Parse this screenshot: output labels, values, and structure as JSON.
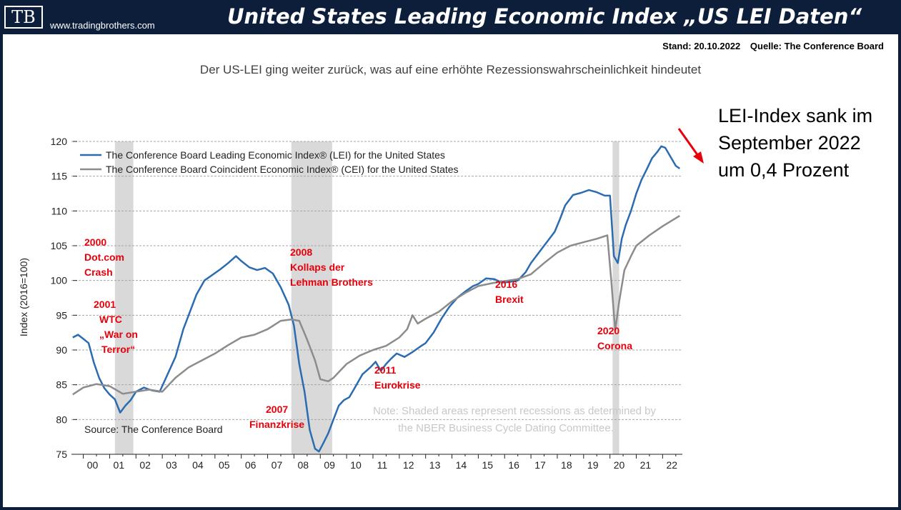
{
  "header": {
    "logo_text": "TB",
    "website": "www.tradingbrothers.com",
    "title": "United States Leading Economic Index „US LEI Daten“"
  },
  "meta": {
    "stand": "Stand: 20.10.2022",
    "quelle": "Quelle: The Conference Board"
  },
  "subtitle": "Der US-LEI ging weiter zurück, was auf eine erhöhte Rezessionswahrscheinlichkeit hindeutet",
  "callout": {
    "lines": [
      "LEI-Index sank im",
      "September 2022",
      "um 0,4 Prozent"
    ],
    "arrow_color": "#e8000b"
  },
  "chart_data": {
    "type": "line",
    "title": "",
    "xlabel": "",
    "ylabel": "Index (2016=100)",
    "xlim": [
      1999.55,
      2022.75
    ],
    "ylim": [
      75,
      120
    ],
    "yticks": [
      75,
      80,
      85,
      90,
      95,
      100,
      105,
      110,
      115,
      120
    ],
    "xticks": [
      {
        "value": 2000,
        "label": "00"
      },
      {
        "value": 2001,
        "label": "01"
      },
      {
        "value": 2002,
        "label": "02"
      },
      {
        "value": 2003,
        "label": "03"
      },
      {
        "value": 2004,
        "label": "04"
      },
      {
        "value": 2005,
        "label": "05"
      },
      {
        "value": 2006,
        "label": "06"
      },
      {
        "value": 2007,
        "label": "07"
      },
      {
        "value": 2008,
        "label": "08"
      },
      {
        "value": 2009,
        "label": "09"
      },
      {
        "value": 2010,
        "label": "10"
      },
      {
        "value": 2011,
        "label": "11"
      },
      {
        "value": 2012,
        "label": "12"
      },
      {
        "value": 2013,
        "label": "13"
      },
      {
        "value": 2014,
        "label": "14"
      },
      {
        "value": 2015,
        "label": "15"
      },
      {
        "value": 2016,
        "label": "16"
      },
      {
        "value": 2017,
        "label": "17"
      },
      {
        "value": 2018,
        "label": "18"
      },
      {
        "value": 2019,
        "label": "19"
      },
      {
        "value": 2020,
        "label": "20"
      },
      {
        "value": 2021,
        "label": "21"
      },
      {
        "value": 2022,
        "label": "22"
      }
    ],
    "recessions": [
      {
        "start": 2001.2,
        "end": 2001.9
      },
      {
        "start": 2007.9,
        "end": 2009.45
      },
      {
        "start": 2020.1,
        "end": 2020.35
      }
    ],
    "legend": {
      "position": "top-left",
      "entries": [
        "The Conference Board Leading Economic Index® (LEI) for the United States",
        "The Conference Board Coincident Economic Index® (CEI) for the United States"
      ]
    },
    "series": [
      {
        "name": "The Conference Board Leading Economic Index® (LEI) for the United States",
        "color": "#2b6cb0",
        "x": [
          1999.6,
          1999.8,
          2000.0,
          2000.2,
          2000.4,
          2000.6,
          2000.8,
          2001.0,
          2001.2,
          2001.4,
          2001.6,
          2001.8,
          2002.0,
          2002.3,
          2002.6,
          2002.9,
          2003.2,
          2003.5,
          2003.8,
          2004.0,
          2004.3,
          2004.6,
          2004.9,
          2005.2,
          2005.5,
          2005.8,
          2006.0,
          2006.3,
          2006.6,
          2006.9,
          2007.2,
          2007.5,
          2007.8,
          2008.0,
          2008.2,
          2008.4,
          2008.6,
          2008.8,
          2008.95,
          2009.1,
          2009.3,
          2009.5,
          2009.7,
          2009.9,
          2010.1,
          2010.3,
          2010.6,
          2010.9,
          2011.1,
          2011.3,
          2011.5,
          2011.7,
          2011.9,
          2012.2,
          2012.5,
          2012.8,
          2013.0,
          2013.3,
          2013.6,
          2013.9,
          2014.2,
          2014.5,
          2014.8,
          2015.0,
          2015.3,
          2015.6,
          2015.9,
          2016.2,
          2016.5,
          2016.8,
          2017.0,
          2017.3,
          2017.6,
          2017.9,
          2018.1,
          2018.3,
          2018.6,
          2018.9,
          2019.2,
          2019.5,
          2019.8,
          2020.0,
          2020.15,
          2020.3,
          2020.45,
          2020.6,
          2020.8,
          2021.0,
          2021.2,
          2021.4,
          2021.6,
          2021.8,
          2021.95,
          2022.1,
          2022.3,
          2022.5,
          2022.65
        ],
        "values": [
          91.8,
          92.2,
          91.6,
          91.0,
          88.2,
          86.0,
          84.5,
          83.6,
          82.9,
          81.0,
          82.0,
          82.8,
          84.0,
          84.6,
          84.2,
          84.0,
          86.5,
          89.0,
          93.0,
          95.0,
          98.0,
          100.0,
          100.8,
          101.6,
          102.5,
          103.5,
          102.8,
          101.9,
          101.5,
          101.8,
          101.0,
          99.0,
          96.5,
          93.5,
          88.0,
          84.0,
          78.5,
          75.8,
          75.4,
          76.5,
          78.0,
          80.0,
          82.0,
          82.8,
          83.2,
          84.5,
          86.5,
          87.5,
          88.3,
          87.0,
          88.0,
          88.8,
          89.5,
          89.0,
          89.7,
          90.5,
          91.0,
          92.5,
          94.5,
          96.2,
          97.5,
          98.4,
          99.2,
          99.5,
          100.3,
          100.2,
          99.7,
          99.8,
          100.0,
          101.2,
          102.5,
          104.0,
          105.5,
          107.0,
          108.8,
          110.8,
          112.3,
          112.6,
          113.0,
          112.7,
          112.2,
          112.2,
          103.5,
          102.5,
          106.0,
          108.0,
          110.0,
          112.5,
          114.5,
          116.0,
          117.6,
          118.5,
          119.3,
          119.1,
          117.8,
          116.5,
          116.1
        ]
      },
      {
        "name": "The Conference Board Coincident Economic Index® (CEI) for the United States",
        "color": "#8c8c8c",
        "x": [
          1999.6,
          2000.0,
          2000.5,
          2001.0,
          2001.5,
          2002.0,
          2002.5,
          2003.0,
          2003.5,
          2004.0,
          2004.5,
          2005.0,
          2005.5,
          2006.0,
          2006.5,
          2007.0,
          2007.5,
          2007.9,
          2008.2,
          2008.5,
          2008.8,
          2009.0,
          2009.3,
          2009.5,
          2010.0,
          2010.5,
          2011.0,
          2011.5,
          2012.0,
          2012.3,
          2012.5,
          2012.7,
          2013.0,
          2013.5,
          2014.0,
          2014.5,
          2015.0,
          2015.5,
          2016.0,
          2016.5,
          2017.0,
          2017.5,
          2018.0,
          2018.5,
          2019.0,
          2019.5,
          2019.9,
          2020.05,
          2020.2,
          2020.35,
          2020.55,
          2020.8,
          2021.0,
          2021.5,
          2022.0,
          2022.3,
          2022.65
        ],
        "values": [
          83.6,
          84.6,
          85.1,
          84.8,
          83.7,
          84.0,
          84.3,
          84.0,
          86.0,
          87.5,
          88.5,
          89.5,
          90.7,
          91.8,
          92.2,
          93.0,
          94.2,
          94.4,
          94.2,
          91.5,
          88.5,
          85.8,
          85.5,
          86.0,
          88.0,
          89.2,
          90.0,
          90.6,
          91.8,
          93.0,
          95.0,
          93.8,
          94.5,
          95.5,
          97.0,
          98.2,
          99.2,
          99.6,
          99.9,
          100.2,
          100.9,
          102.5,
          104.0,
          105.0,
          105.5,
          106.0,
          106.5,
          100.0,
          92.8,
          97.0,
          101.5,
          103.5,
          105.0,
          106.5,
          107.8,
          108.5,
          109.3
        ]
      }
    ],
    "annotations": [
      {
        "lines": [
          "2000",
          "Dot.com",
          "Crash"
        ]
      },
      {
        "lines": [
          "2001",
          "WTC",
          "„War on",
          "Terror“"
        ]
      },
      {
        "lines": [
          "2008",
          "Kollaps der",
          "Lehman Brothers"
        ]
      },
      {
        "lines": [
          "2007",
          "Finanzkrise"
        ]
      },
      {
        "lines": [
          "2011",
          "Eurokrise"
        ]
      },
      {
        "lines": [
          "2016",
          "Brexit"
        ]
      },
      {
        "lines": [
          "2020",
          "Corona"
        ]
      }
    ],
    "source": "Source: The Conference Board",
    "note": [
      "Note: Shaded areas represent recessions as determined by",
      "the NBER Business Cycle Dating Committee."
    ]
  }
}
